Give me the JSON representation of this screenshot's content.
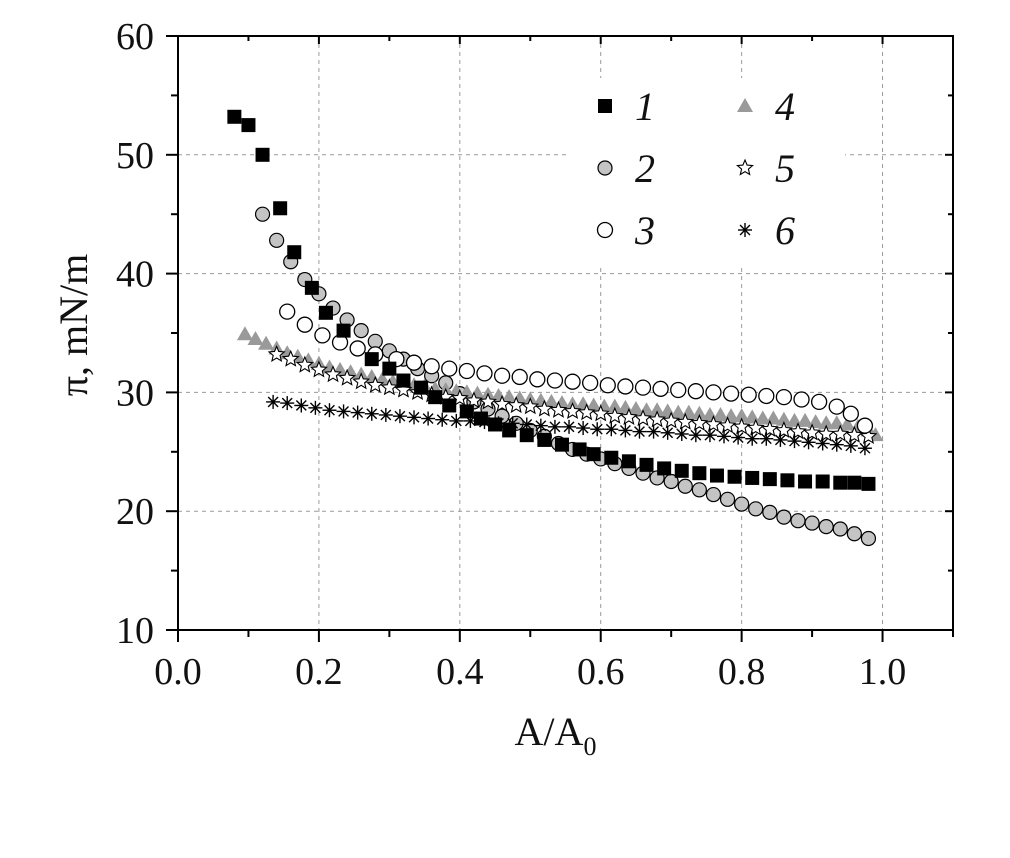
{
  "chart_data": {
    "type": "scatter",
    "xlabel_main": "A/A",
    "xlabel_sub": "0",
    "ylabel": "π,  mN/m",
    "xlim": [
      0.0,
      1.1
    ],
    "ylim": [
      10,
      60
    ],
    "x_ticks": [
      0.0,
      0.2,
      0.4,
      0.6,
      0.8,
      1.0
    ],
    "x_tick_labels": [
      "0.0",
      "0.2",
      "0.4",
      "0.6",
      "0.8",
      "1.0"
    ],
    "y_ticks": [
      10,
      20,
      30,
      40,
      50,
      60
    ],
    "y_tick_labels": [
      "10",
      "20",
      "30",
      "40",
      "50",
      "60"
    ],
    "grid": true,
    "legend_position": "top-right",
    "series": [
      {
        "name": "1",
        "marker": "filled-square",
        "color": "#000000",
        "x": [
          0.08,
          0.1,
          0.12,
          0.145,
          0.165,
          0.19,
          0.21,
          0.235,
          0.275,
          0.3,
          0.32,
          0.345,
          0.365,
          0.385,
          0.41,
          0.43,
          0.45,
          0.47,
          0.495,
          0.52,
          0.545,
          0.57,
          0.59,
          0.615,
          0.64,
          0.665,
          0.69,
          0.715,
          0.74,
          0.765,
          0.79,
          0.815,
          0.84,
          0.865,
          0.89,
          0.915,
          0.94,
          0.96,
          0.98
        ],
        "y": [
          53.2,
          52.5,
          50.0,
          45.5,
          41.8,
          38.8,
          36.7,
          35.2,
          32.8,
          32.0,
          31.0,
          30.4,
          29.6,
          28.9,
          28.4,
          27.8,
          27.3,
          26.8,
          26.4,
          26.0,
          25.6,
          25.2,
          24.8,
          24.5,
          24.2,
          23.9,
          23.6,
          23.4,
          23.2,
          23.0,
          22.9,
          22.8,
          22.7,
          22.6,
          22.5,
          22.5,
          22.4,
          22.4,
          22.3
        ]
      },
      {
        "name": "2",
        "marker": "gray-circle",
        "color": "#c0c0c0",
        "x": [
          0.12,
          0.14,
          0.16,
          0.18,
          0.2,
          0.22,
          0.24,
          0.26,
          0.28,
          0.3,
          0.32,
          0.34,
          0.36,
          0.38,
          0.4,
          0.42,
          0.44,
          0.46,
          0.48,
          0.5,
          0.52,
          0.54,
          0.56,
          0.58,
          0.6,
          0.62,
          0.64,
          0.66,
          0.68,
          0.7,
          0.72,
          0.74,
          0.76,
          0.78,
          0.8,
          0.82,
          0.84,
          0.86,
          0.88,
          0.9,
          0.92,
          0.94,
          0.96,
          0.98
        ],
        "y": [
          45.0,
          42.8,
          41.0,
          39.5,
          38.3,
          37.1,
          36.1,
          35.2,
          34.3,
          33.5,
          32.8,
          32.0,
          31.4,
          30.8,
          29.9,
          29.2,
          28.6,
          28.0,
          27.4,
          26.8,
          26.3,
          25.7,
          25.2,
          24.8,
          24.4,
          24.0,
          23.6,
          23.2,
          22.8,
          22.5,
          22.1,
          21.8,
          21.4,
          21.0,
          20.6,
          20.2,
          19.9,
          19.5,
          19.2,
          19.0,
          18.7,
          18.5,
          18.1,
          17.7
        ]
      },
      {
        "name": "3",
        "marker": "open-circle",
        "color": "#ffffff",
        "x": [
          0.155,
          0.18,
          0.205,
          0.23,
          0.255,
          0.28,
          0.31,
          0.335,
          0.36,
          0.385,
          0.41,
          0.435,
          0.46,
          0.485,
          0.51,
          0.535,
          0.56,
          0.585,
          0.61,
          0.635,
          0.66,
          0.685,
          0.71,
          0.735,
          0.76,
          0.785,
          0.81,
          0.835,
          0.86,
          0.885,
          0.91,
          0.935,
          0.955,
          0.975
        ],
        "y": [
          36.8,
          35.7,
          34.8,
          34.2,
          33.7,
          33.2,
          32.8,
          32.5,
          32.2,
          32.0,
          31.8,
          31.6,
          31.4,
          31.3,
          31.1,
          31.0,
          30.9,
          30.8,
          30.6,
          30.5,
          30.4,
          30.3,
          30.2,
          30.1,
          30.0,
          29.9,
          29.8,
          29.7,
          29.6,
          29.4,
          29.2,
          28.8,
          28.2,
          27.2
        ]
      },
      {
        "name": "4",
        "marker": "gray-triangle",
        "color": "#999999",
        "x": [
          0.095,
          0.11,
          0.125,
          0.14,
          0.155,
          0.17,
          0.185,
          0.2,
          0.215,
          0.23,
          0.245,
          0.26,
          0.275,
          0.29,
          0.305,
          0.32,
          0.335,
          0.35,
          0.365,
          0.38,
          0.395,
          0.41,
          0.425,
          0.44,
          0.455,
          0.47,
          0.485,
          0.5,
          0.515,
          0.53,
          0.545,
          0.56,
          0.575,
          0.59,
          0.605,
          0.62,
          0.635,
          0.65,
          0.665,
          0.68,
          0.695,
          0.71,
          0.725,
          0.74,
          0.755,
          0.77,
          0.785,
          0.8,
          0.815,
          0.83,
          0.845,
          0.86,
          0.875,
          0.89,
          0.905,
          0.92,
          0.935,
          0.95,
          0.965,
          0.98,
          0.99
        ],
        "y": [
          34.9,
          34.5,
          34.1,
          33.7,
          33.3,
          33.0,
          32.7,
          32.4,
          32.1,
          31.9,
          31.7,
          31.5,
          31.3,
          31.1,
          30.9,
          30.8,
          30.6,
          30.5,
          30.3,
          30.2,
          30.1,
          30.0,
          29.9,
          29.8,
          29.7,
          29.6,
          29.5,
          29.4,
          29.3,
          29.2,
          29.1,
          29.0,
          29.0,
          28.9,
          28.8,
          28.8,
          28.7,
          28.6,
          28.5,
          28.5,
          28.4,
          28.3,
          28.3,
          28.2,
          28.1,
          28.1,
          28.0,
          28.0,
          27.9,
          27.8,
          27.8,
          27.7,
          27.6,
          27.6,
          27.5,
          27.4,
          27.4,
          27.3,
          27.1,
          26.8,
          26.4
        ]
      },
      {
        "name": "5",
        "marker": "open-star",
        "color": "#ffffff",
        "x": [
          0.14,
          0.16,
          0.18,
          0.2,
          0.22,
          0.24,
          0.26,
          0.28,
          0.3,
          0.32,
          0.34,
          0.36,
          0.38,
          0.4,
          0.42,
          0.44,
          0.46,
          0.48,
          0.5,
          0.52,
          0.54,
          0.56,
          0.58,
          0.6,
          0.62,
          0.64,
          0.66,
          0.68,
          0.7,
          0.72,
          0.74,
          0.76,
          0.78,
          0.8,
          0.82,
          0.84,
          0.86,
          0.88,
          0.9,
          0.92,
          0.94,
          0.96,
          0.98
        ],
        "y": [
          33.2,
          32.8,
          32.3,
          31.9,
          31.5,
          31.2,
          30.9,
          30.6,
          30.4,
          30.2,
          30.0,
          29.8,
          29.6,
          29.5,
          29.3,
          29.2,
          29.0,
          28.9,
          28.8,
          28.6,
          28.5,
          28.4,
          28.3,
          28.2,
          28.0,
          27.9,
          27.8,
          27.7,
          27.6,
          27.5,
          27.4,
          27.3,
          27.2,
          27.1,
          27.0,
          26.9,
          26.8,
          26.7,
          26.6,
          26.5,
          26.5,
          26.4,
          26.3
        ]
      },
      {
        "name": "6",
        "marker": "asterisk",
        "color": "#000000",
        "x": [
          0.135,
          0.155,
          0.175,
          0.195,
          0.215,
          0.235,
          0.255,
          0.275,
          0.295,
          0.315,
          0.335,
          0.355,
          0.375,
          0.395,
          0.415,
          0.435,
          0.455,
          0.475,
          0.495,
          0.515,
          0.535,
          0.555,
          0.575,
          0.595,
          0.615,
          0.635,
          0.655,
          0.675,
          0.695,
          0.715,
          0.735,
          0.755,
          0.775,
          0.795,
          0.815,
          0.835,
          0.855,
          0.875,
          0.895,
          0.915,
          0.935,
          0.955,
          0.975
        ],
        "y": [
          29.2,
          29.1,
          28.9,
          28.7,
          28.5,
          28.4,
          28.3,
          28.2,
          28.1,
          28.0,
          27.9,
          27.8,
          27.7,
          27.6,
          27.6,
          27.5,
          27.4,
          27.4,
          27.3,
          27.2,
          27.1,
          27.1,
          27.0,
          26.9,
          26.9,
          26.8,
          26.7,
          26.7,
          26.6,
          26.5,
          26.4,
          26.4,
          26.3,
          26.2,
          26.1,
          26.1,
          26.0,
          25.9,
          25.8,
          25.7,
          25.6,
          25.5,
          25.3
        ]
      }
    ]
  }
}
